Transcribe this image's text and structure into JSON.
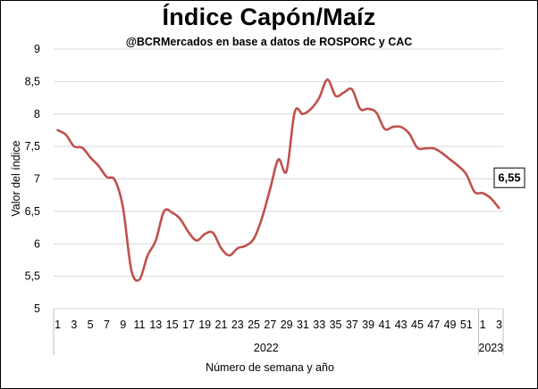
{
  "chart_data": {
    "type": "line",
    "title": "Índice Capón/Maíz",
    "subtitle": "@BCRMercados en base a datos de ROSPORC y CAC",
    "xlabel": "Número de semana y año",
    "ylabel": "Valor del índice",
    "ylim": [
      5,
      9
    ],
    "yticks": [
      "5",
      "5,5",
      "6",
      "6,5",
      "7",
      "7,5",
      "8",
      "8,5",
      "9"
    ],
    "grid": true,
    "line_color": "#c0504d",
    "x_tick_labels": [
      "1",
      "3",
      "5",
      "7",
      "9",
      "11",
      "13",
      "15",
      "17",
      "19",
      "21",
      "23",
      "25",
      "27",
      "29",
      "31",
      "33",
      "35",
      "37",
      "39",
      "41",
      "43",
      "45",
      "47",
      "49",
      "51",
      "1",
      "3"
    ],
    "years": [
      {
        "label": "2022",
        "weeks": 52
      },
      {
        "label": "2023",
        "weeks": 3
      }
    ],
    "x": [
      "2022-W01",
      "2022-W02",
      "2022-W03",
      "2022-W04",
      "2022-W05",
      "2022-W06",
      "2022-W07",
      "2022-W08",
      "2022-W09",
      "2022-W10",
      "2022-W11",
      "2022-W12",
      "2022-W13",
      "2022-W14",
      "2022-W15",
      "2022-W16",
      "2022-W17",
      "2022-W18",
      "2022-W19",
      "2022-W20",
      "2022-W21",
      "2022-W22",
      "2022-W23",
      "2022-W24",
      "2022-W25",
      "2022-W26",
      "2022-W27",
      "2022-W28",
      "2022-W29",
      "2022-W30",
      "2022-W31",
      "2022-W32",
      "2022-W33",
      "2022-W34",
      "2022-W35",
      "2022-W36",
      "2022-W37",
      "2022-W38",
      "2022-W39",
      "2022-W40",
      "2022-W41",
      "2022-W42",
      "2022-W43",
      "2022-W44",
      "2022-W45",
      "2022-W46",
      "2022-W47",
      "2022-W48",
      "2022-W49",
      "2022-W50",
      "2022-W51",
      "2022-W52",
      "2023-W01",
      "2023-W02",
      "2023-W03"
    ],
    "series": [
      {
        "values": [
          7.75,
          7.68,
          7.5,
          7.48,
          7.33,
          7.2,
          7.03,
          6.98,
          6.55,
          5.6,
          5.45,
          5.82,
          6.05,
          6.5,
          6.48,
          6.38,
          6.18,
          6.05,
          6.15,
          6.17,
          5.93,
          5.82,
          5.93,
          5.97,
          6.08,
          6.4,
          6.85,
          7.3,
          7.12,
          8.03,
          8.0,
          8.08,
          8.25,
          8.53,
          8.28,
          8.33,
          8.38,
          8.08,
          8.08,
          8.02,
          7.77,
          7.8,
          7.8,
          7.7,
          7.48,
          7.47,
          7.47,
          7.4,
          7.3,
          7.2,
          7.07,
          6.8,
          6.78,
          6.7,
          6.55
        ]
      }
    ],
    "last_value_label": "6,55"
  }
}
